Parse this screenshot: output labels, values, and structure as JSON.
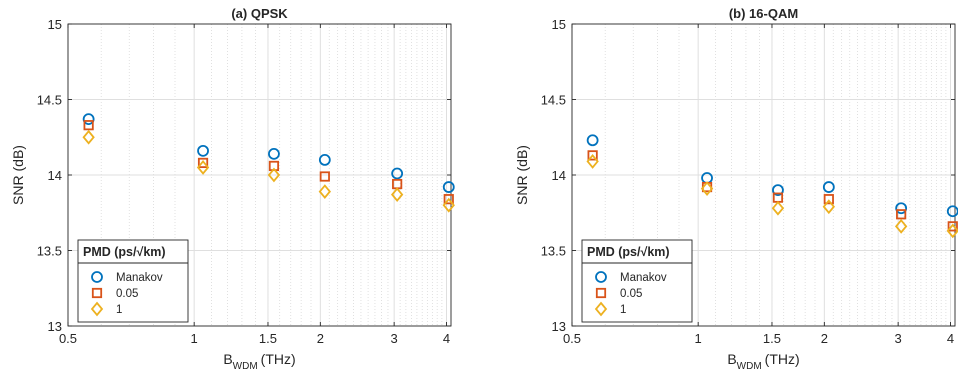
{
  "colors": {
    "manakov": "#0072BD",
    "pmd_005": "#D95319",
    "pmd_1": "#EDB120",
    "grid": "#dfdfdf",
    "axis": "#262626"
  },
  "chart_data": [
    {
      "type": "scatter",
      "title": "(a) QPSK",
      "xlabel_main": "B",
      "xlabel_sub": "WDM",
      "xlabel_unit": "(THz)",
      "ylabel": "SNR (dB)",
      "xscale": "log",
      "xlim": [
        0.5,
        4.1
      ],
      "ylim": [
        13,
        15
      ],
      "xticks": [
        0.5,
        1,
        1.5,
        2,
        3,
        4
      ],
      "xtick_labels": [
        "0.5",
        "1",
        "1.5",
        "2",
        "3",
        "4"
      ],
      "yticks": [
        13,
        13.5,
        14,
        14.5,
        15
      ],
      "ytick_labels": [
        "13",
        "13.5",
        "14",
        "14.5",
        "15"
      ],
      "grid": true,
      "legend": {
        "title": "PMD (ps/√km)",
        "position": "bottom-left",
        "entries": [
          "Manakov",
          "0.05",
          "1"
        ]
      },
      "series": [
        {
          "name": "Manakov",
          "marker": "circle",
          "x": [
            0.56,
            1.05,
            1.55,
            2.05,
            3.05,
            4.05
          ],
          "y": [
            14.37,
            14.16,
            14.14,
            14.1,
            14.01,
            13.92
          ]
        },
        {
          "name": "0.05",
          "marker": "square",
          "x": [
            0.56,
            1.05,
            1.55,
            2.05,
            3.05,
            4.05
          ],
          "y": [
            14.33,
            14.08,
            14.06,
            13.99,
            13.94,
            13.84
          ]
        },
        {
          "name": "1",
          "marker": "diamond",
          "x": [
            0.56,
            1.05,
            1.55,
            2.05,
            3.05,
            4.05
          ],
          "y": [
            14.25,
            14.05,
            14.0,
            13.89,
            13.87,
            13.8
          ]
        }
      ]
    },
    {
      "type": "scatter",
      "title": "(b) 16-QAM",
      "xlabel_main": "B",
      "xlabel_sub": "WDM",
      "xlabel_unit": "(THz)",
      "ylabel": "SNR (dB)",
      "xscale": "log",
      "xlim": [
        0.5,
        4.1
      ],
      "ylim": [
        13,
        15
      ],
      "xticks": [
        0.5,
        1,
        1.5,
        2,
        3,
        4
      ],
      "xtick_labels": [
        "0.5",
        "1",
        "1.5",
        "2",
        "3",
        "4"
      ],
      "yticks": [
        13,
        13.5,
        14,
        14.5,
        15
      ],
      "ytick_labels": [
        "13",
        "13.5",
        "14",
        "14.5",
        "15"
      ],
      "grid": true,
      "legend": {
        "title": "PMD (ps/√km)",
        "position": "bottom-left",
        "entries": [
          "Manakov",
          "0.05",
          "1"
        ]
      },
      "series": [
        {
          "name": "Manakov",
          "marker": "circle",
          "x": [
            0.56,
            1.05,
            1.55,
            2.05,
            3.05,
            4.05
          ],
          "y": [
            14.23,
            13.98,
            13.9,
            13.92,
            13.78,
            13.76
          ]
        },
        {
          "name": "0.05",
          "marker": "square",
          "x": [
            0.56,
            1.05,
            1.55,
            2.05,
            3.05,
            4.05
          ],
          "y": [
            14.13,
            13.92,
            13.85,
            13.84,
            13.74,
            13.66
          ]
        },
        {
          "name": "1",
          "marker": "diamond",
          "x": [
            0.56,
            1.05,
            1.55,
            2.05,
            3.05,
            4.05
          ],
          "y": [
            14.09,
            13.91,
            13.78,
            13.79,
            13.66,
            13.63
          ]
        }
      ]
    }
  ]
}
